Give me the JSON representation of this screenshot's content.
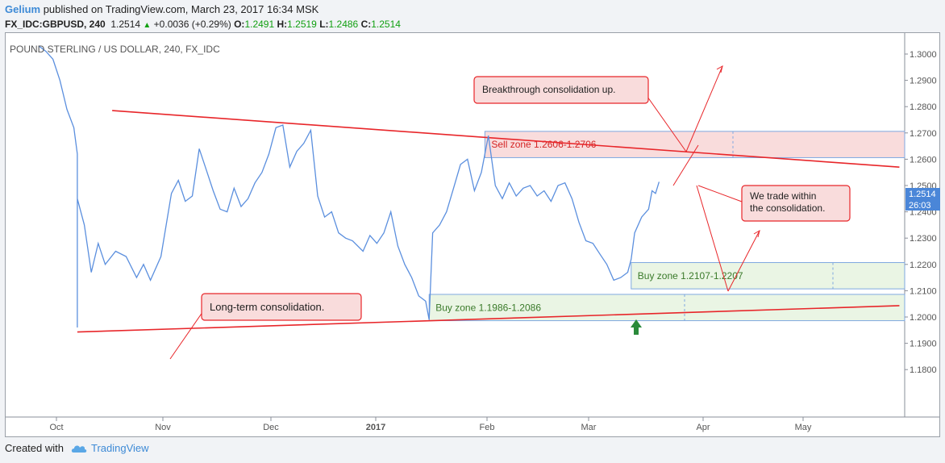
{
  "header": {
    "author": "Gelium",
    "published_text": "published on TradingView.com, March 23, 2017 16:34 MSK",
    "symbol": "FX_IDC:GBPUSD, 240",
    "last": "1.2514",
    "change": "+0.0036 (+0.29%)",
    "o_label": "O:",
    "o_value": "1.2491",
    "h_label": "H:",
    "h_value": "1.2519",
    "l_label": "L:",
    "l_value": "1.2486",
    "c_label": "C:",
    "c_value": "1.2514"
  },
  "footer": {
    "created_with": "Created with",
    "brand": "TradingView"
  },
  "colors": {
    "price": "#5b8fde",
    "trendline": "#e8262a",
    "sell_zone": "#f9dcdc",
    "buy_zone": "#eaf5e4",
    "accent": "#3d8ad6"
  },
  "chart_data": {
    "type": "line",
    "title": "POUND STERLING / US DOLLAR, 240, FX_IDC",
    "y_ticks": [
      "1.3000",
      "1.2900",
      "1.2800",
      "1.2700",
      "1.2600",
      "1.2500",
      "1.2400",
      "1.2300",
      "1.2200",
      "1.2100",
      "1.2000",
      "1.1900",
      "1.1800"
    ],
    "x_ticks": [
      "Oct",
      "Nov",
      "Dec",
      "2017",
      "Feb",
      "Mar",
      "Apr",
      "May"
    ],
    "ylim": [
      1.175,
      1.307
    ],
    "price_label": "1.2514",
    "countdown_label": "26:03",
    "series": [
      {
        "values": [
          [
            "2016-09-26",
            1.303
          ],
          [
            "2016-09-28",
            1.301
          ],
          [
            "2016-09-30",
            1.298
          ],
          [
            "2016-10-02",
            1.29
          ],
          [
            "2016-10-04",
            1.279
          ],
          [
            "2016-10-06",
            1.272
          ],
          [
            "2016-10-07",
            1.262
          ],
          [
            "2016-10-07",
            1.196
          ],
          [
            "2016-10-07",
            1.245
          ],
          [
            "2016-10-09",
            1.235
          ],
          [
            "2016-10-11",
            1.217
          ],
          [
            "2016-10-13",
            1.228
          ],
          [
            "2016-10-15",
            1.22
          ],
          [
            "2016-10-18",
            1.225
          ],
          [
            "2016-10-21",
            1.223
          ],
          [
            "2016-10-24",
            1.215
          ],
          [
            "2016-10-26",
            1.22
          ],
          [
            "2016-10-28",
            1.214
          ],
          [
            "2016-10-31",
            1.223
          ],
          [
            "2016-11-03",
            1.247
          ],
          [
            "2016-11-05",
            1.252
          ],
          [
            "2016-11-07",
            1.244
          ],
          [
            "2016-11-09",
            1.246
          ],
          [
            "2016-11-11",
            1.264
          ],
          [
            "2016-11-13",
            1.256
          ],
          [
            "2016-11-15",
            1.248
          ],
          [
            "2016-11-17",
            1.241
          ],
          [
            "2016-11-19",
            1.24
          ],
          [
            "2016-11-21",
            1.249
          ],
          [
            "2016-11-23",
            1.242
          ],
          [
            "2016-11-25",
            1.245
          ],
          [
            "2016-11-27",
            1.251
          ],
          [
            "2016-11-29",
            1.255
          ],
          [
            "2016-12-01",
            1.262
          ],
          [
            "2016-12-03",
            1.272
          ],
          [
            "2016-12-05",
            1.273
          ],
          [
            "2016-12-07",
            1.257
          ],
          [
            "2016-12-09",
            1.263
          ],
          [
            "2016-12-11",
            1.266
          ],
          [
            "2016-12-13",
            1.271
          ],
          [
            "2016-12-15",
            1.246
          ],
          [
            "2016-12-17",
            1.238
          ],
          [
            "2016-12-19",
            1.24
          ],
          [
            "2016-12-21",
            1.232
          ],
          [
            "2016-12-23",
            1.23
          ],
          [
            "2016-12-25",
            1.229
          ],
          [
            "2016-12-28",
            1.225
          ],
          [
            "2016-12-30",
            1.231
          ],
          [
            "2017-01-01",
            1.228
          ],
          [
            "2017-01-03",
            1.232
          ],
          [
            "2017-01-05",
            1.24
          ],
          [
            "2017-01-07",
            1.227
          ],
          [
            "2017-01-09",
            1.22
          ],
          [
            "2017-01-11",
            1.215
          ],
          [
            "2017-01-13",
            1.208
          ],
          [
            "2017-01-15",
            1.206
          ],
          [
            "2017-01-16",
            1.199
          ],
          [
            "2017-01-17",
            1.232
          ],
          [
            "2017-01-19",
            1.235
          ],
          [
            "2017-01-21",
            1.24
          ],
          [
            "2017-01-23",
            1.249
          ],
          [
            "2017-01-25",
            1.258
          ],
          [
            "2017-01-27",
            1.26
          ],
          [
            "2017-01-29",
            1.248
          ],
          [
            "2017-01-31",
            1.255
          ],
          [
            "2017-02-02",
            1.269
          ],
          [
            "2017-02-04",
            1.25
          ],
          [
            "2017-02-06",
            1.245
          ],
          [
            "2017-02-08",
            1.251
          ],
          [
            "2017-02-10",
            1.246
          ],
          [
            "2017-02-12",
            1.249
          ],
          [
            "2017-02-14",
            1.25
          ],
          [
            "2017-02-16",
            1.246
          ],
          [
            "2017-02-18",
            1.248
          ],
          [
            "2017-02-20",
            1.244
          ],
          [
            "2017-02-22",
            1.25
          ],
          [
            "2017-02-24",
            1.251
          ],
          [
            "2017-02-26",
            1.245
          ],
          [
            "2017-02-28",
            1.236
          ],
          [
            "2017-03-02",
            1.229
          ],
          [
            "2017-03-04",
            1.228
          ],
          [
            "2017-03-06",
            1.224
          ],
          [
            "2017-03-08",
            1.22
          ],
          [
            "2017-03-10",
            1.214
          ],
          [
            "2017-03-12",
            1.215
          ],
          [
            "2017-03-14",
            1.217
          ],
          [
            "2017-03-15",
            1.222
          ],
          [
            "2017-03-16",
            1.232
          ],
          [
            "2017-03-18",
            1.238
          ],
          [
            "2017-03-20",
            1.241
          ],
          [
            "2017-03-21",
            1.248
          ],
          [
            "2017-03-22",
            1.247
          ],
          [
            "2017-03-23",
            1.2514
          ]
        ]
      }
    ],
    "zones": [
      {
        "label": "Sell zone 1.2606-1.2706",
        "low": 1.2606,
        "high": 1.2706,
        "start": "2017-02-01",
        "kind": "sell"
      },
      {
        "label": "Buy zone 1.2107-1.2207",
        "low": 1.2107,
        "high": 1.2207,
        "start": "2017-03-15",
        "kind": "buy"
      },
      {
        "label": "Buy zone 1.1986-1.2086",
        "low": 1.1986,
        "high": 1.2086,
        "start": "2017-01-16",
        "kind": "buy"
      }
    ],
    "trendlines": [
      {
        "from": [
          "2016-10-17",
          1.2785
        ],
        "to": [
          "2017-05-31",
          1.257
        ]
      },
      {
        "from": [
          "2016-10-07",
          1.1943
        ],
        "to": [
          "2017-05-31",
          1.2043
        ]
      }
    ],
    "annotations": [
      "Breakthrough consolidation up.",
      "We trade within the consolidation.",
      "Long-term consolidation."
    ]
  }
}
